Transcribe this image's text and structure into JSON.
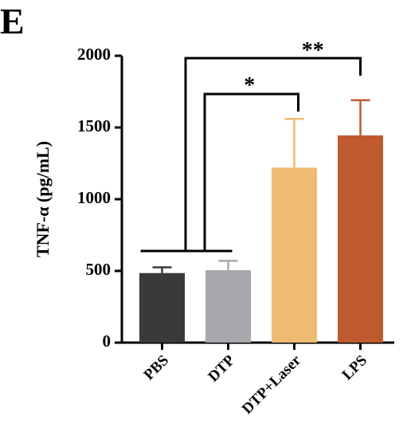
{
  "chart_data": {
    "type": "bar",
    "panel_label": "E",
    "ylabel": "TNF-α (pg/mL)",
    "categories": [
      "PBS",
      "DTP",
      "DTP+Laser",
      "LPS"
    ],
    "values": [
      485,
      505,
      1220,
      1445
    ],
    "errors": [
      40,
      65,
      340,
      245
    ],
    "colors": [
      "#3a3a3a",
      "#a7a8ab",
      "#efbb73",
      "#bf5a2e"
    ],
    "ylim": [
      0,
      2000
    ],
    "yticks": [
      0,
      500,
      1000,
      1500,
      2000
    ],
    "annotations": [
      "*",
      "**"
    ]
  }
}
